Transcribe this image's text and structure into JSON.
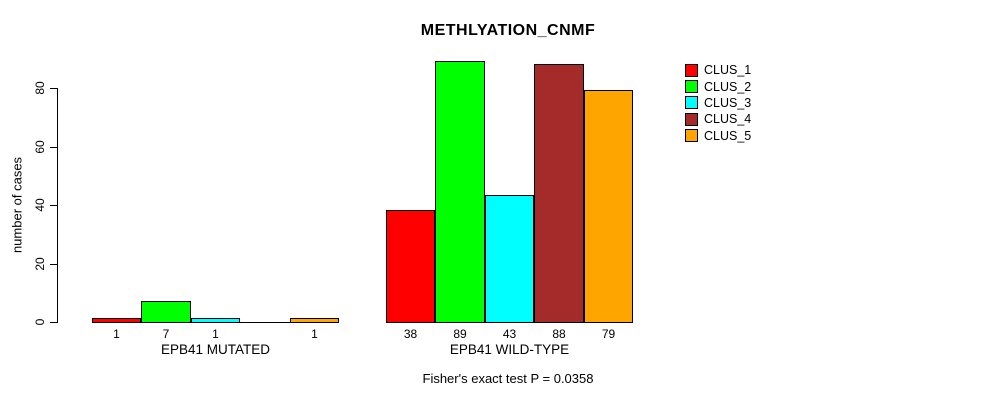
{
  "chart_data": {
    "type": "bar",
    "title": "METHLYATION_CNMF",
    "xlabel": "",
    "ylabel": "number of cases",
    "ylim": [
      0,
      89
    ],
    "yticks": [
      0,
      20,
      40,
      60,
      80
    ],
    "grid": false,
    "legend_position": "right",
    "categories": [
      "EPB41 MUTATED",
      "EPB41 WILD-TYPE"
    ],
    "series": [
      {
        "name": "CLUS_1",
        "color": "#FF0000",
        "values": [
          1,
          38
        ]
      },
      {
        "name": "CLUS_2",
        "color": "#00FF00",
        "values": [
          7,
          89
        ]
      },
      {
        "name": "CLUS_3",
        "color": "#00FFFF",
        "values": [
          1,
          43
        ]
      },
      {
        "name": "CLUS_4",
        "color": "#A52A2A",
        "values": [
          0,
          88
        ]
      },
      {
        "name": "CLUS_5",
        "color": "#FFA500",
        "values": [
          1,
          79
        ]
      }
    ],
    "bar_labels_shown": true,
    "bar_labels_hide_zero": true,
    "annotation": "Fisher's exact test P = 0.0358"
  }
}
